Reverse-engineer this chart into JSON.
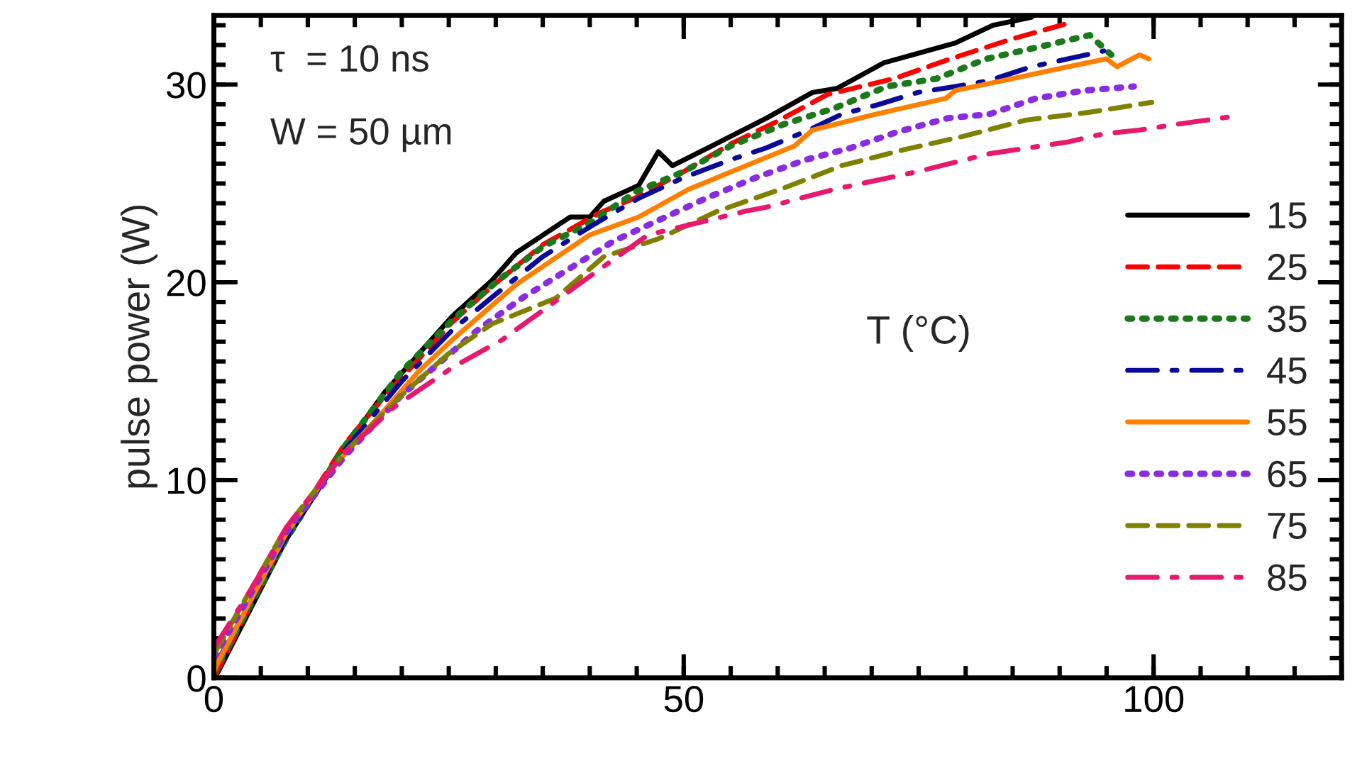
{
  "chart_data": {
    "type": "line",
    "ylabel": "pulse power (W)",
    "legend_title": "T (°C)",
    "annotations": [
      "τ  = 10 ns",
      "W = 50 µm"
    ],
    "xlim": [
      0,
      120
    ],
    "xticks": [
      0,
      50,
      100
    ],
    "ylim": [
      0,
      33.5
    ],
    "yticks": [
      0,
      10,
      20,
      30
    ],
    "grid": false,
    "legend": "right",
    "marker": "none",
    "series": [
      {
        "name": "15",
        "color": "#000000",
        "line_style": "solid",
        "x": [
          0,
          0.45,
          7.7,
          13.9,
          18.1,
          25.4,
          29.6,
          32.2,
          37.9,
          40.0,
          41.5,
          45.2,
          47.3,
          48.8,
          52.6,
          58.8,
          63.7,
          66.3,
          71.3,
          78.9,
          82.9,
          87.0
        ],
        "values": [
          0,
          0.3,
          7.0,
          11.6,
          14.4,
          18.3,
          20.1,
          21.5,
          23.3,
          23.3,
          24.1,
          24.9,
          26.6,
          25.9,
          26.8,
          28.3,
          29.6,
          29.8,
          31.1,
          32.1,
          33.0,
          33.4
        ]
      },
      {
        "name": "25",
        "color": "#ff0000",
        "line_style": "dashed",
        "x": [
          0,
          7.7,
          13.9,
          18.1,
          25.4,
          29.6,
          35,
          41,
          45,
          50,
          55,
          59.8,
          65.3,
          72.4,
          78.4,
          84.9,
          90.9
        ],
        "values": [
          0,
          7.2,
          11.8,
          14.2,
          18.0,
          19.8,
          21.9,
          23.5,
          24.3,
          25.6,
          27.0,
          28.1,
          29.5,
          30.3,
          31.3,
          32.3,
          33.1
        ]
      },
      {
        "name": "35",
        "color": "#1a7a1a",
        "line_style": "dotted",
        "x": [
          0,
          7.7,
          13.9,
          20,
          25.4,
          30,
          35,
          40,
          45,
          50,
          55,
          60.7,
          66.0,
          71.6,
          76.9,
          82.2,
          87.8,
          93.2,
          95.5
        ],
        "values": [
          0.3,
          7.0,
          11.7,
          15.5,
          18.1,
          20.0,
          21.8,
          23.0,
          24.6,
          25.6,
          26.9,
          28.0,
          28.8,
          29.9,
          30.3,
          31.3,
          31.9,
          32.5,
          31.5
        ]
      },
      {
        "name": "45",
        "color": "#0a0a9a",
        "line_style": "dashdot",
        "x": [
          0,
          7.7,
          13.9,
          20,
          25.4,
          30,
          35,
          40,
          45,
          50,
          55,
          58.8,
          63.3,
          66.8,
          70.8,
          74.9,
          78.9,
          82.5,
          87.0,
          90.9,
          94.7
        ],
        "values": [
          0.5,
          7.1,
          11.5,
          15.0,
          17.6,
          19.4,
          21.3,
          22.8,
          24.2,
          25.3,
          26.2,
          26.8,
          27.7,
          28.5,
          29.0,
          29.6,
          29.9,
          30.2,
          30.9,
          31.3,
          31.7
        ]
      },
      {
        "name": "55",
        "color": "#ff8000",
        "line_style": "solid",
        "x": [
          0,
          0.45,
          7.7,
          12.4,
          18.1,
          21.8,
          25.4,
          32.2,
          40.0,
          45.2,
          50.5,
          61.8,
          63.7,
          70.4,
          77.9,
          78.9,
          84.0,
          90.9,
          95.0,
          96.1,
          98.5,
          99.5
        ],
        "values": [
          0.3,
          0.8,
          7.3,
          10.5,
          13.5,
          15.5,
          17.1,
          19.9,
          22.4,
          23.3,
          24.7,
          26.9,
          27.7,
          28.5,
          29.3,
          29.7,
          30.2,
          30.9,
          31.3,
          30.9,
          31.5,
          31.3
        ]
      },
      {
        "name": "65",
        "color": "#8a2be2",
        "line_style": "dotted",
        "x": [
          0,
          7.7,
          13.9,
          20,
          25.4,
          28.1,
          32.8,
          42.6,
          52.6,
          57.7,
          63.0,
          67.8,
          72.7,
          78.1,
          82.5,
          87.5,
          92.7,
          97.9
        ],
        "values": [
          1.0,
          7.4,
          11.2,
          14.3,
          16.5,
          17.6,
          19.2,
          22.1,
          24.3,
          25.3,
          26.2,
          26.8,
          27.6,
          28.3,
          28.5,
          29.3,
          29.7,
          29.9
        ]
      },
      {
        "name": "75",
        "color": "#808000",
        "line_style": "dashed",
        "x": [
          0,
          7.7,
          13.9,
          20,
          25,
          29.6,
          36.4,
          41.5,
          47.3,
          53.6,
          60.3,
          66.8,
          73.4,
          79.9,
          86.4,
          93.2,
          99.8
        ],
        "values": [
          1.2,
          7.6,
          11.4,
          14.3,
          16.4,
          17.9,
          19.2,
          21.3,
          22.2,
          23.6,
          24.7,
          25.9,
          26.7,
          27.4,
          28.2,
          28.6,
          29.1
        ]
      },
      {
        "name": "85",
        "color": "#e8186e",
        "line_style": "dashdot",
        "x": [
          0,
          4,
          7.7,
          13.9,
          19.2,
          25.4,
          30.7,
          40.0,
          46.2,
          56.6,
          58.8,
          66.0,
          74.9,
          82.5,
          90.9,
          94.6,
          98.5,
          102.6,
          108.6
        ],
        "values": [
          1.5,
          4.5,
          7.6,
          11.4,
          13.7,
          15.7,
          17.1,
          20.3,
          22.4,
          23.6,
          23.8,
          24.7,
          25.6,
          26.5,
          27.1,
          27.5,
          27.7,
          28.0,
          28.4
        ]
      }
    ]
  }
}
